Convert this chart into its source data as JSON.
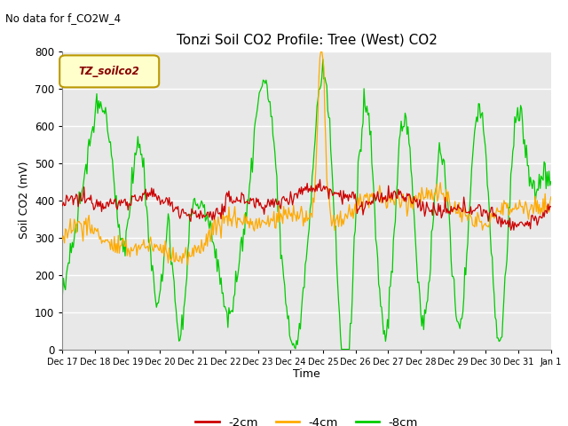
{
  "title": "Tonzi Soil CO2 Profile: Tree (West) CO2",
  "subtitle": "No data for f_CO2W_4",
  "ylabel": "Soil CO2 (mV)",
  "xlabel": "Time",
  "legend_label": "TZ_soilco2",
  "series_labels": [
    "-2cm",
    "-4cm",
    "-8cm"
  ],
  "series_colors": [
    "#cc0000",
    "#ffaa00",
    "#00cc00"
  ],
  "ylim": [
    0,
    800
  ],
  "fig_bg": "#ffffff",
  "plot_bg": "#e8e8e8",
  "grid_color": "#ffffff",
  "xtick_labels": [
    "Dec 17",
    "Dec 18",
    "Dec 19",
    "Dec 20",
    "Dec 21",
    "Dec 22",
    "Dec 23",
    "Dec 24",
    "Dec 25",
    "Dec 26",
    "Dec 27",
    "Dec 28",
    "Dec 29",
    "Dec 30",
    "Dec 31",
    "Jan 1"
  ],
  "n_points": 500
}
